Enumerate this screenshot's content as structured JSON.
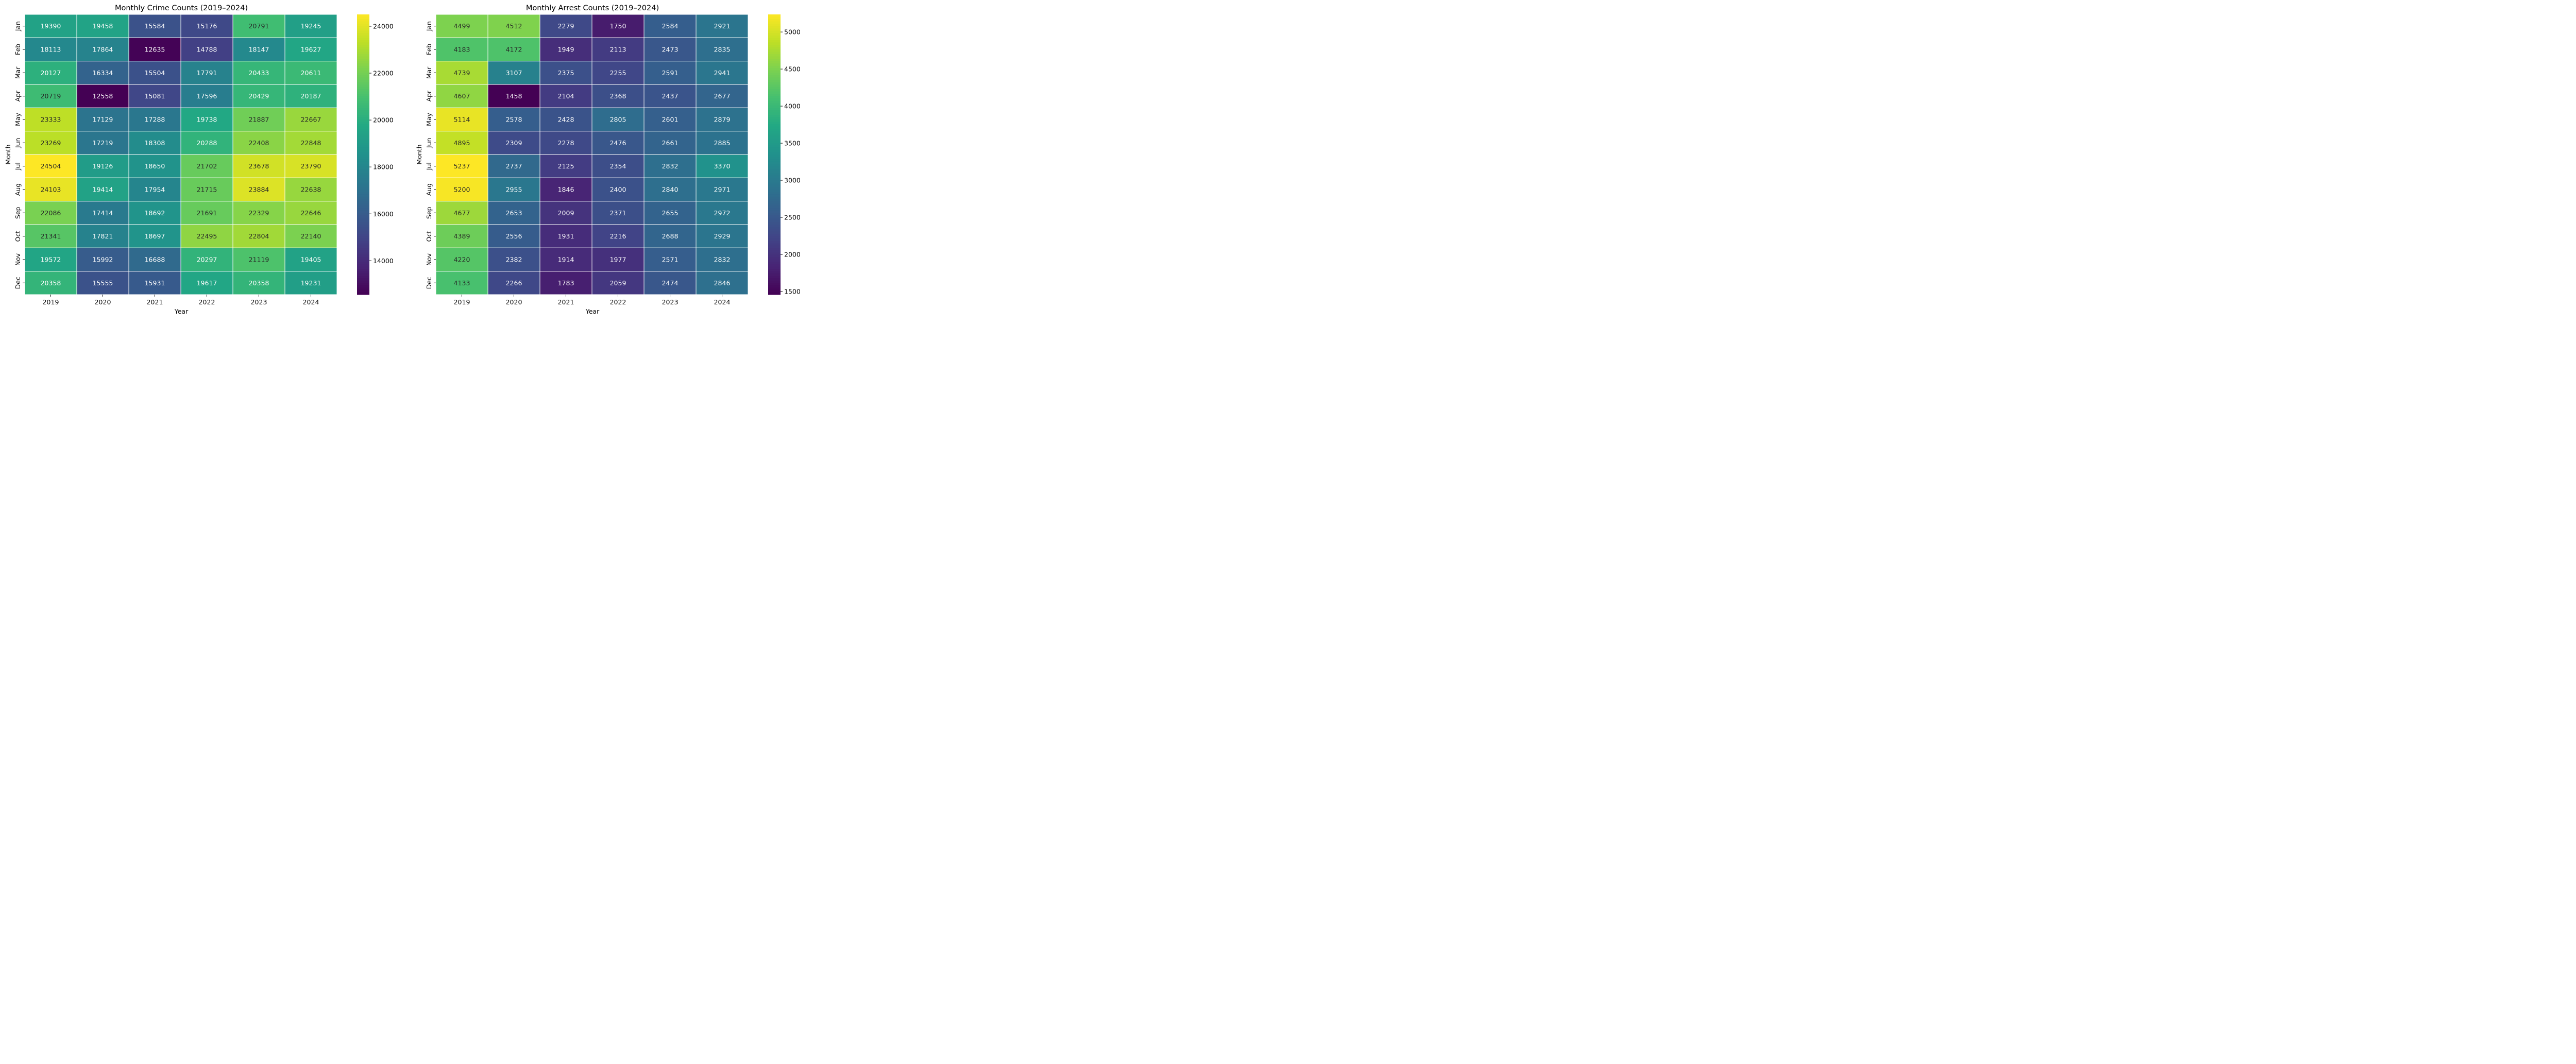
{
  "chart_data": [
    {
      "type": "heatmap",
      "title": "Monthly Crime Counts (2019–2024)",
      "xlabel": "Year",
      "ylabel": "Month",
      "x": [
        "2019",
        "2020",
        "2021",
        "2022",
        "2023",
        "2024"
      ],
      "y": [
        "Jan",
        "Feb",
        "Mar",
        "Apr",
        "May",
        "Jun",
        "Jul",
        "Aug",
        "Sep",
        "Oct",
        "Nov",
        "Dec"
      ],
      "values": [
        [
          19390,
          19458,
          15584,
          15176,
          20791,
          19245
        ],
        [
          18113,
          17864,
          12635,
          14788,
          18147,
          19627
        ],
        [
          20127,
          16334,
          15504,
          17791,
          20433,
          20611
        ],
        [
          20719,
          12558,
          15081,
          17596,
          20429,
          20187
        ],
        [
          23333,
          17129,
          17288,
          19738,
          21887,
          22667
        ],
        [
          23269,
          17219,
          18308,
          20288,
          22408,
          22848
        ],
        [
          24504,
          19126,
          18650,
          21702,
          23678,
          23790
        ],
        [
          24103,
          19414,
          17954,
          21715,
          23884,
          22638
        ],
        [
          22086,
          17414,
          18692,
          21691,
          22329,
          22646
        ],
        [
          21341,
          17821,
          18697,
          22495,
          22804,
          22140
        ],
        [
          19572,
          15992,
          16688,
          20297,
          21119,
          19405
        ],
        [
          20358,
          15555,
          15931,
          19617,
          20358,
          19231
        ]
      ],
      "colormap": "viridis",
      "vmin": 12558,
      "vmax": 24504,
      "colorbar_ticks": [
        14000,
        16000,
        18000,
        20000,
        22000,
        24000
      ],
      "grid": false
    },
    {
      "type": "heatmap",
      "title": "Monthly Arrest Counts (2019–2024)",
      "xlabel": "Year",
      "ylabel": "Month",
      "x": [
        "2019",
        "2020",
        "2021",
        "2022",
        "2023",
        "2024"
      ],
      "y": [
        "Jan",
        "Feb",
        "Mar",
        "Apr",
        "May",
        "Jun",
        "Jul",
        "Aug",
        "Sep",
        "Oct",
        "Nov",
        "Dec"
      ],
      "values": [
        [
          4499,
          4512,
          2279,
          1750,
          2584,
          2921
        ],
        [
          4183,
          4172,
          1949,
          2113,
          2473,
          2835
        ],
        [
          4739,
          3107,
          2375,
          2255,
          2591,
          2941
        ],
        [
          4607,
          1458,
          2104,
          2368,
          2437,
          2677
        ],
        [
          5114,
          2578,
          2428,
          2805,
          2601,
          2879
        ],
        [
          4895,
          2309,
          2278,
          2476,
          2661,
          2885
        ],
        [
          5237,
          2737,
          2125,
          2354,
          2832,
          3370
        ],
        [
          5200,
          2955,
          1846,
          2400,
          2840,
          2971
        ],
        [
          4677,
          2653,
          2009,
          2371,
          2655,
          2972
        ],
        [
          4389,
          2556,
          1931,
          2216,
          2688,
          2929
        ],
        [
          4220,
          2382,
          1914,
          1977,
          2571,
          2832
        ],
        [
          4133,
          2266,
          1783,
          2059,
          2474,
          2846
        ]
      ],
      "colormap": "viridis",
      "vmin": 1458,
      "vmax": 5237,
      "colorbar_ticks": [
        1500,
        2000,
        2500,
        3000,
        3500,
        4000,
        4500,
        5000
      ],
      "grid": false
    }
  ]
}
